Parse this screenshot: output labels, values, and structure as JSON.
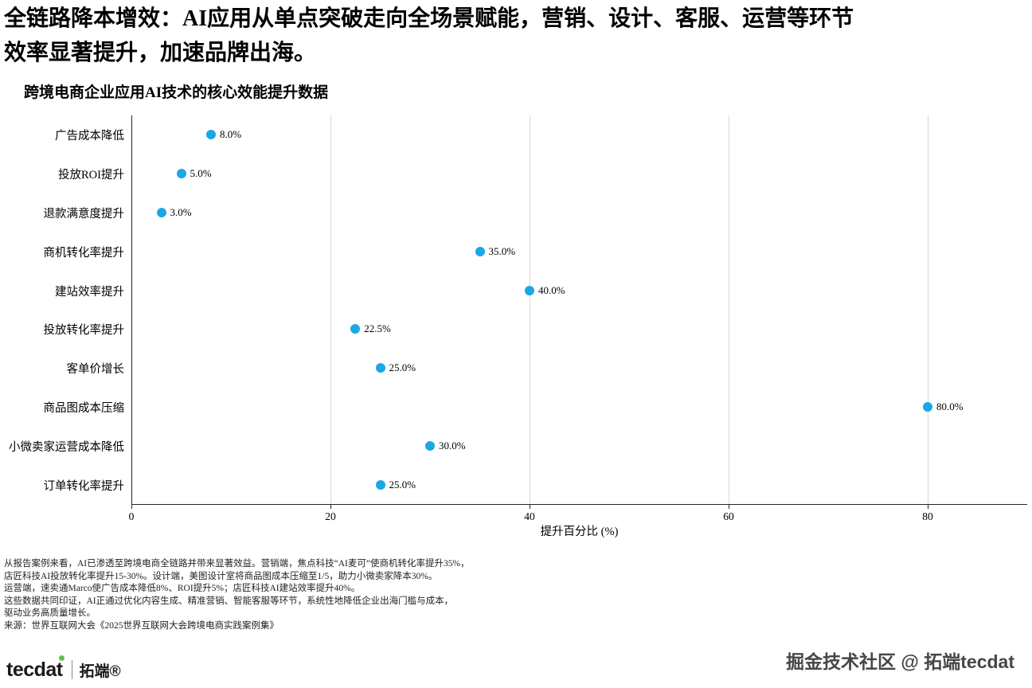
{
  "header": {
    "title_line1": "全链路降本增效：AI应用从单点突破走向全场景赋能，营销、设计、客服、运营等环节",
    "title_line2": "效率显著提升，加速品牌出海。",
    "subtitle": "跨境电商企业应用AI技术的核心效能提升数据"
  },
  "chart_data": {
    "type": "scatter",
    "orientation": "horizontal",
    "title": "跨境电商企业应用AI技术的核心效能提升数据",
    "categories": [
      "广告成本降低",
      "投放ROI提升",
      "退款满意度提升",
      "商机转化率提升",
      "建站效率提升",
      "投放转化率提升",
      "客单价增长",
      "商品图成本压缩",
      "小微卖家运营成本降低",
      "订单转化率提升"
    ],
    "values": [
      8.0,
      5.0,
      3.0,
      35.0,
      40.0,
      22.5,
      25.0,
      80.0,
      30.0,
      25.0
    ],
    "point_labels": [
      "8.0%",
      "5.0%",
      "3.0%",
      "35.0%",
      "40.0%",
      "22.5%",
      "25.0%",
      "80.0%",
      "30.0%",
      "25.0%"
    ],
    "xlabel": "提升百分比 (%)",
    "xlim": [
      0,
      90
    ],
    "xticks": [
      0,
      20,
      40,
      60,
      80
    ],
    "grid": true,
    "legend": "none",
    "dot_color": "#1aa7e6",
    "grid_color": "#d9d9d9",
    "axis_color": "#262626"
  },
  "notes": {
    "lines": [
      "从报告案例来看，AI已渗透至跨境电商全链路并带来显著效益。营销端，焦点科技“AI麦可”使商机转化率提升35%，",
      "店匠科技AI投放转化率提升15-30%。设计端，美图设计室将商品图成本压缩至1/5，助力小微卖家降本30%。",
      "运营端，速卖通Marco使广告成本降低8%、ROI提升5%；店匠科技AI建站效率提升40%。",
      "这些数据共同印证，AI正通过优化内容生成、精准营销、智能客服等环节，系统性地降低企业出海门槛与成本，",
      "驱动业务高质量增长。",
      "来源：世界互联网大会《2025世界互联网大会跨境电商实践案例集》"
    ]
  },
  "footer": {
    "logo_en": "tecdat",
    "logo_cn": "拓端®",
    "logo_accent_color": "#6abf4b",
    "watermark": "掘金技术社区 @ 拓端tecdat"
  }
}
